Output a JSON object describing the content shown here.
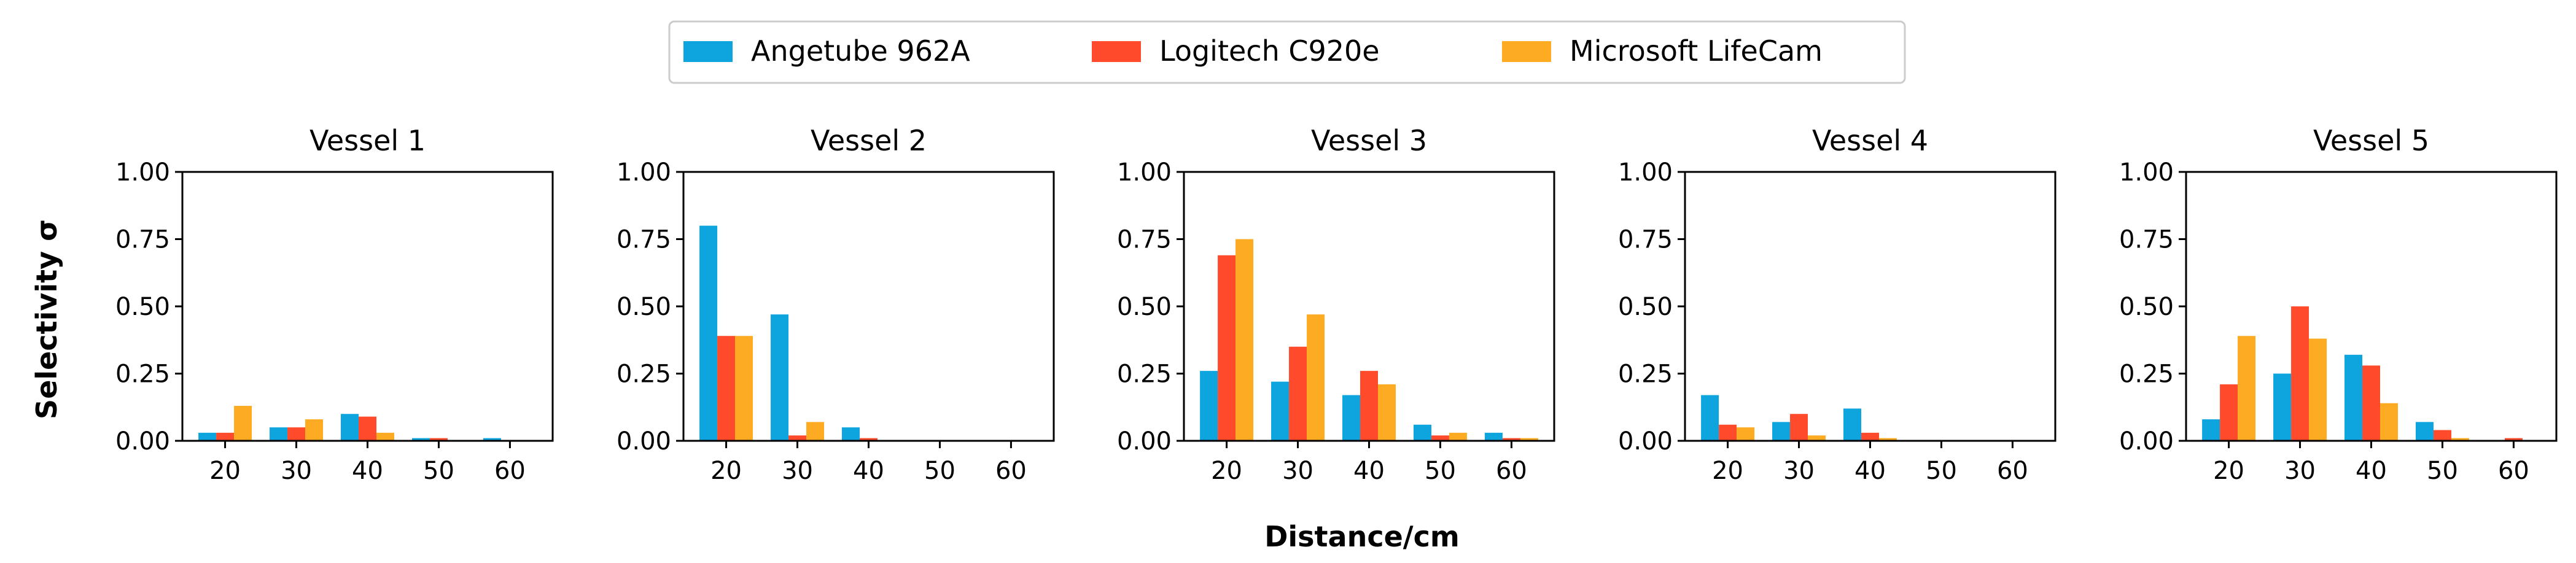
{
  "chart_data": {
    "type": "bar",
    "shared_xlabel": "Distance/cm",
    "shared_ylabel": "Selectivity σ",
    "categories": [
      "20",
      "30",
      "40",
      "50",
      "60"
    ],
    "yticks": [
      "0.00",
      "0.25",
      "0.50",
      "0.75",
      "1.00"
    ],
    "ylim": [
      0,
      1
    ],
    "legend": {
      "position": "top-center",
      "entries": [
        {
          "name": "Angetube 962A",
          "color": "#0ea5df"
        },
        {
          "name": "Logitech C920e",
          "color": "#ff4b2b"
        },
        {
          "name": "Microsoft LifeCam",
          "color": "#fdab23"
        }
      ]
    },
    "panels": [
      {
        "title": "Vessel 1",
        "series": [
          {
            "name": "Angetube 962A",
            "values": [
              0.03,
              0.05,
              0.1,
              0.01,
              0.01
            ]
          },
          {
            "name": "Logitech C920e",
            "values": [
              0.03,
              0.05,
              0.09,
              0.01,
              0.0
            ]
          },
          {
            "name": "Microsoft LifeCam",
            "values": [
              0.13,
              0.08,
              0.03,
              0.0,
              0.0
            ]
          }
        ]
      },
      {
        "title": "Vessel 2",
        "series": [
          {
            "name": "Angetube 962A",
            "values": [
              0.8,
              0.47,
              0.05,
              0.0,
              0.0
            ]
          },
          {
            "name": "Logitech C920e",
            "values": [
              0.39,
              0.02,
              0.01,
              0.0,
              0.0
            ]
          },
          {
            "name": "Microsoft LifeCam",
            "values": [
              0.39,
              0.07,
              0.0,
              0.0,
              0.0
            ]
          }
        ]
      },
      {
        "title": "Vessel 3",
        "series": [
          {
            "name": "Angetube 962A",
            "values": [
              0.26,
              0.22,
              0.17,
              0.06,
              0.03
            ]
          },
          {
            "name": "Logitech C920e",
            "values": [
              0.69,
              0.35,
              0.26,
              0.02,
              0.01
            ]
          },
          {
            "name": "Microsoft LifeCam",
            "values": [
              0.75,
              0.47,
              0.21,
              0.03,
              0.01
            ]
          }
        ]
      },
      {
        "title": "Vessel 4",
        "series": [
          {
            "name": "Angetube 962A",
            "values": [
              0.17,
              0.07,
              0.12,
              0.0,
              0.0
            ]
          },
          {
            "name": "Logitech C920e",
            "values": [
              0.06,
              0.1,
              0.03,
              0.0,
              0.0
            ]
          },
          {
            "name": "Microsoft LifeCam",
            "values": [
              0.05,
              0.02,
              0.01,
              0.0,
              0.0
            ]
          }
        ]
      },
      {
        "title": "Vessel 5",
        "series": [
          {
            "name": "Angetube 962A",
            "values": [
              0.08,
              0.25,
              0.32,
              0.07,
              0.0
            ]
          },
          {
            "name": "Logitech C920e",
            "values": [
              0.21,
              0.5,
              0.28,
              0.04,
              0.01
            ]
          },
          {
            "name": "Microsoft LifeCam",
            "values": [
              0.39,
              0.38,
              0.14,
              0.01,
              0.0
            ]
          }
        ]
      }
    ]
  }
}
